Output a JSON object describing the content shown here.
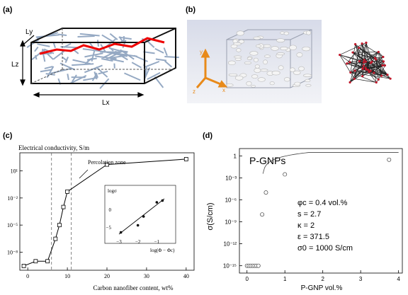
{
  "panels": {
    "a": {
      "label": "(a)",
      "dims": {
        "ly": "Ly",
        "lz": "Lz",
        "lx": "Lx"
      }
    },
    "b": {
      "label": "(b)",
      "axes": {
        "y": "y",
        "x": "x",
        "z": "z"
      }
    },
    "c": {
      "label": "(c)",
      "y_title": "Electrical conductivity, S/m",
      "x_title": "Carbon nanofiber content, wt%",
      "annotation": "Percolation zone",
      "inset_ylabel": "logσ",
      "inset_xlabel": "log(Φ − Φc)",
      "ytick_labels": [
        "10¹",
        "10⁻²",
        "10⁻⁵",
        "10⁻⁸"
      ],
      "xtick_labels": [
        "0",
        "10",
        "20",
        "30",
        "40"
      ],
      "inset_ytick_labels": [
        "0",
        "−5"
      ],
      "inset_xtick_labels": [
        "−3",
        "−2",
        "−1"
      ]
    },
    "d": {
      "label": "(d)",
      "legend_title": "P-GNPs",
      "y_title": "σ(S/cm)",
      "x_title": "P-GNP vol.%",
      "ytick_labels": [
        "1",
        "10⁻³",
        "10⁻⁶",
        "10⁻⁹",
        "10⁻¹²",
        "10⁻¹⁵"
      ],
      "xtick_labels": [
        "0",
        "1",
        "2",
        "3",
        "4"
      ],
      "params": [
        {
          "sym": "φc",
          "text": "φc = 0.4 vol.%"
        },
        {
          "sym": "s",
          "text": "s = 2.7"
        },
        {
          "sym": "κ",
          "text": "κ = 2"
        },
        {
          "sym": "ε",
          "text": "ε = 371.5"
        },
        {
          "sym": "σ0",
          "text": "σ0 = 1000 S/cm"
        }
      ]
    }
  },
  "chart_data": [
    {
      "type": "line",
      "panel": "c",
      "title": "",
      "xlabel": "Carbon nanofiber content, wt%",
      "ylabel": "Electrical conductivity, S/m",
      "xlim": [
        -2,
        42
      ],
      "yscale": "log",
      "ylim": [
        1e-10,
        1000.0
      ],
      "x": [
        -1,
        2,
        5,
        7,
        8,
        9,
        10,
        20,
        40
      ],
      "y": [
        3e-10,
        1e-09,
        1e-09,
        3e-07,
        1e-05,
        0.001,
        0.05,
        50,
        200
      ],
      "vlines": [
        6,
        11
      ],
      "inset": {
        "type": "scatter",
        "xlabel": "log(Φ − Φc)",
        "ylabel": "logσ",
        "x": [
          -2.9,
          -2.0,
          -1.7,
          -1.0,
          -0.7
        ],
        "y": [
          -6.5,
          -4.5,
          -2.0,
          2.0,
          2.5
        ],
        "fit": [
          [
            -3.0,
            -7.0
          ],
          [
            -0.6,
            3.0
          ]
        ]
      }
    },
    {
      "type": "scatter",
      "panel": "d",
      "title": "P-GNPs",
      "xlabel": "P-GNP vol.%",
      "ylabel": "σ(S/cm)",
      "xlim": [
        -0.2,
        4.1
      ],
      "yscale": "log",
      "ylim": [
        1e-16,
        10
      ],
      "x": [
        0.0,
        0.05,
        0.1,
        0.15,
        0.2,
        0.25,
        0.3,
        0.4,
        0.5,
        1.0,
        3.75
      ],
      "y": [
        1e-15,
        1e-15,
        1e-15,
        1e-15,
        1e-15,
        1e-15,
        1e-15,
        1e-08,
        1e-05,
        0.003,
        0.3
      ],
      "fit_curve": "σ = σ0 (φ − φc)^s",
      "fit_params": {
        "phi_c": 0.4,
        "s": 2.7,
        "kappa": 2,
        "epsilon": 371.5,
        "sigma0": 1000
      }
    }
  ]
}
